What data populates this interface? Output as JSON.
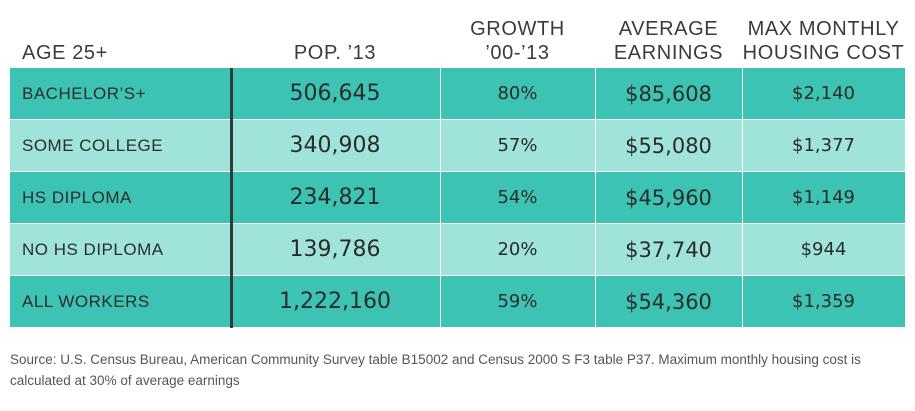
{
  "chart_data": {
    "type": "table",
    "columns": [
      {
        "lines": [
          "AGE 25+"
        ]
      },
      {
        "lines": [
          "POP. ’13"
        ]
      },
      {
        "lines": [
          "GROWTH",
          "’00-’13"
        ]
      },
      {
        "lines": [
          "AVERAGE",
          "EARNINGS"
        ]
      },
      {
        "lines": [
          "MAX MONTHLY",
          "HOUSING COST"
        ]
      }
    ],
    "rows": [
      {
        "label": "BACHELOR’S+",
        "pop": "506,645",
        "growth": "80%",
        "earnings": "$85,608",
        "housing": "$2,140"
      },
      {
        "label": "SOME COLLEGE",
        "pop": "340,908",
        "growth": "57%",
        "earnings": "$55,080",
        "housing": "$1,377"
      },
      {
        "label": "HS DIPLOMA",
        "pop": "234,821",
        "growth": "54%",
        "earnings": "$45,960",
        "housing": "$1,149"
      },
      {
        "label": "NO HS DIPLOMA",
        "pop": "139,786",
        "growth": "20%",
        "earnings": "$37,740",
        "housing": "$944"
      },
      {
        "label": "ALL WORKERS",
        "pop": "1,222,160",
        "growth": "59%",
        "earnings": "$54,360",
        "housing": "$1,359"
      }
    ],
    "source": "Source: U.S. Census Bureau, American Community Survey table B15002 and Census 2000 S F3 table P37. Maximum monthly housing cost is calculated at 30% of average earnings"
  },
  "colors": {
    "row_dark": "#3cc3b4",
    "row_light": "#9fe3db",
    "divider": "#2f3a3a"
  }
}
